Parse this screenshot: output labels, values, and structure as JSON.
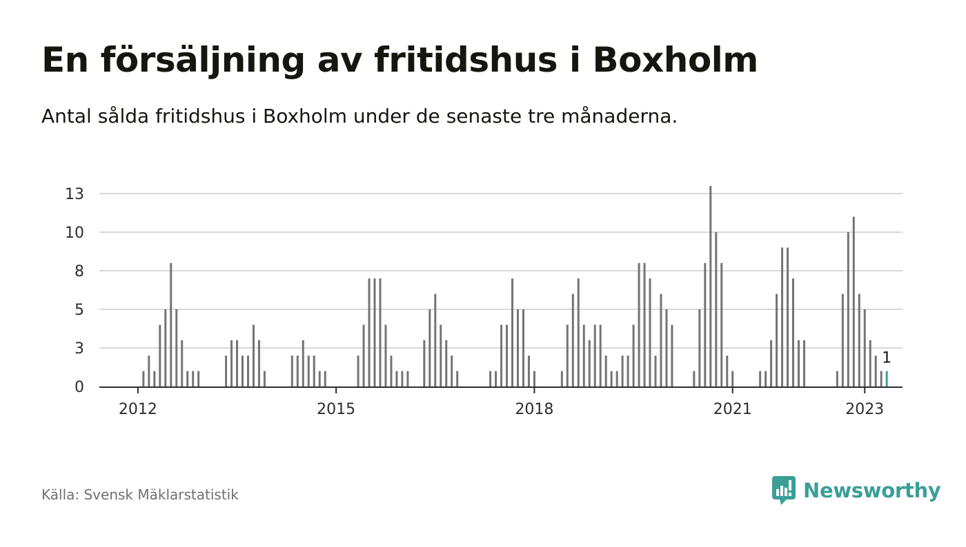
{
  "header": {
    "title": "En försäljning av fritidshus i Boxholm",
    "subtitle": "Antal sålda fritidshus i Boxholm under de senaste tre månaderna."
  },
  "footer": {
    "source": "Källa: Svensk Mäklarstatistik",
    "brand": "Newsworthy"
  },
  "colors": {
    "bar": "#737378",
    "highlight": "#3b9f97",
    "grid": "#d8d8d8",
    "axis": "#2d2d2d",
    "text": "#16160f"
  },
  "chart_data": {
    "type": "bar",
    "title": "En försäljning av fritidshus i Boxholm",
    "xlabel": "",
    "ylabel": "",
    "ylim": [
      0,
      14
    ],
    "yticks": [
      {
        "value": 0,
        "label": "0"
      },
      {
        "value": 2.5,
        "label": "3"
      },
      {
        "value": 5,
        "label": "5"
      },
      {
        "value": 7.5,
        "label": "8"
      },
      {
        "value": 10,
        "label": "10"
      },
      {
        "value": 12.5,
        "label": "13"
      }
    ],
    "xticks": [
      {
        "date": "2012-01",
        "label": "2012"
      },
      {
        "date": "2015-01",
        "label": "2015"
      },
      {
        "date": "2018-01",
        "label": "2018"
      },
      {
        "date": "2021-01",
        "label": "2021"
      },
      {
        "date": "2023-01",
        "label": "2023"
      }
    ],
    "grid": true,
    "legend": "none",
    "x_start": "2011-07",
    "highlight_last": true,
    "last_value_label": "1",
    "values": [
      0,
      0,
      0,
      0,
      0,
      0,
      0,
      1,
      2,
      1,
      4,
      5,
      8,
      5,
      3,
      1,
      1,
      1,
      0,
      0,
      0,
      0,
      2,
      3,
      3,
      2,
      2,
      4,
      3,
      1,
      0,
      0,
      0,
      0,
      2,
      2,
      3,
      2,
      2,
      1,
      1,
      0,
      0,
      0,
      0,
      0,
      2,
      4,
      7,
      7,
      7,
      4,
      2,
      1,
      1,
      1,
      0,
      0,
      3,
      5,
      6,
      4,
      3,
      2,
      1,
      0,
      0,
      0,
      0,
      0,
      1,
      1,
      4,
      4,
      7,
      5,
      5,
      2,
      1,
      0,
      0,
      0,
      0,
      1,
      4,
      6,
      7,
      4,
      3,
      4,
      4,
      2,
      1,
      1,
      2,
      2,
      4,
      8,
      8,
      7,
      2,
      6,
      5,
      4,
      0,
      0,
      0,
      1,
      5,
      8,
      13,
      10,
      8,
      2,
      1,
      0,
      0,
      0,
      0,
      1,
      1,
      3,
      6,
      9,
      9,
      7,
      3,
      3,
      0,
      0,
      0,
      0,
      0,
      1,
      6,
      10,
      11,
      6,
      5,
      3,
      2,
      1,
      1
    ]
  }
}
